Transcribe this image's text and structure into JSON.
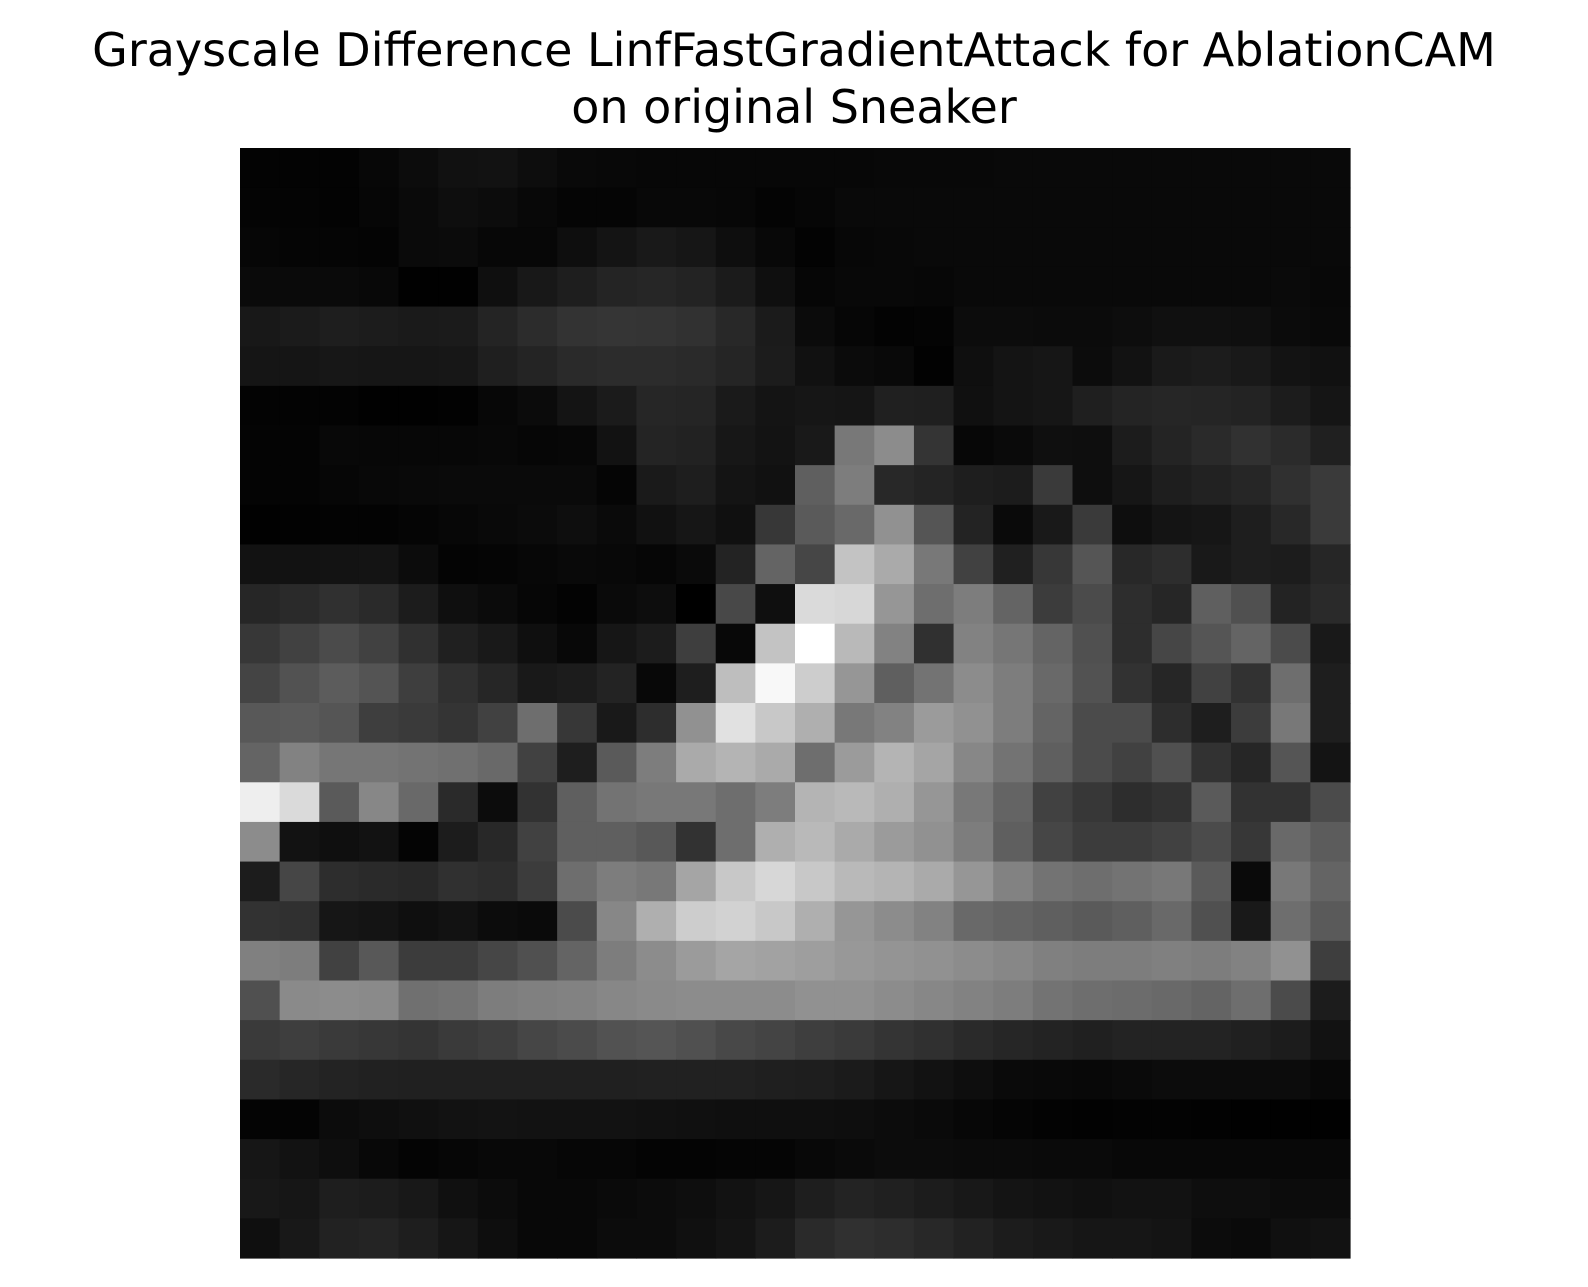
{
  "chart_data": {
    "type": "heatmap",
    "title": "Grayscale Difference LinfFastGradientAttack for AblationCAM\non original Sneaker",
    "title_lines": [
      "Grayscale Difference LinfFastGradientAttack for AblationCAM",
      "on original Sneaker"
    ],
    "colormap": "gray",
    "value_range": [
      0,
      255
    ],
    "axes_visible": false,
    "rows": 28,
    "cols": 28,
    "values": [
      [
        3,
        3,
        3,
        7,
        12,
        17,
        18,
        13,
        9,
        8,
        7,
        7,
        7,
        7,
        7,
        7,
        8,
        8,
        8,
        9,
        9,
        9,
        9,
        9,
        9,
        9,
        9,
        9
      ],
      [
        4,
        4,
        3,
        6,
        10,
        14,
        12,
        8,
        5,
        5,
        8,
        8,
        7,
        4,
        6,
        9,
        9,
        9,
        9,
        9,
        9,
        9,
        9,
        9,
        9,
        9,
        9,
        9
      ],
      [
        6,
        5,
        5,
        4,
        10,
        11,
        7,
        7,
        14,
        20,
        25,
        22,
        14,
        8,
        3,
        7,
        8,
        9,
        9,
        9,
        9,
        9,
        9,
        9,
        9,
        9,
        9,
        9
      ],
      [
        10,
        10,
        10,
        8,
        1,
        1,
        15,
        24,
        30,
        36,
        38,
        35,
        27,
        15,
        6,
        8,
        8,
        7,
        9,
        9,
        9,
        9,
        9,
        9,
        9,
        9,
        10,
        8
      ],
      [
        24,
        27,
        30,
        28,
        26,
        27,
        36,
        44,
        51,
        53,
        52,
        49,
        40,
        27,
        11,
        6,
        3,
        4,
        12,
        12,
        11,
        11,
        13,
        16,
        16,
        15,
        11,
        9
      ],
      [
        21,
        21,
        23,
        22,
        22,
        23,
        31,
        36,
        42,
        44,
        44,
        42,
        37,
        28,
        17,
        11,
        9,
        2,
        15,
        20,
        22,
        12,
        18,
        26,
        28,
        25,
        19,
        17
      ],
      [
        3,
        3,
        3,
        1,
        1,
        2,
        7,
        11,
        20,
        27,
        38,
        37,
        26,
        20,
        22,
        21,
        32,
        31,
        16,
        20,
        22,
        31,
        36,
        38,
        37,
        35,
        28,
        21
      ],
      [
        4,
        4,
        8,
        7,
        7,
        7,
        8,
        6,
        7,
        18,
        36,
        34,
        23,
        19,
        25,
        120,
        140,
        52,
        7,
        10,
        15,
        14,
        28,
        36,
        42,
        49,
        43,
        32
      ],
      [
        4,
        4,
        6,
        8,
        9,
        10,
        10,
        10,
        10,
        5,
        26,
        30,
        20,
        17,
        95,
        125,
        40,
        36,
        30,
        28,
        58,
        14,
        22,
        30,
        34,
        38,
        48,
        58
      ],
      [
        1,
        2,
        3,
        3,
        5,
        7,
        9,
        11,
        14,
        10,
        17,
        22,
        16,
        55,
        90,
        105,
        145,
        85,
        35,
        10,
        25,
        58,
        14,
        20,
        22,
        30,
        40,
        58
      ],
      [
        18,
        18,
        19,
        20,
        12,
        4,
        5,
        7,
        9,
        8,
        6,
        10,
        35,
        100,
        70,
        195,
        170,
        120,
        65,
        32,
        55,
        85,
        40,
        45,
        25,
        30,
        28,
        38
      ],
      [
        38,
        42,
        48,
        42,
        28,
        15,
        11,
        6,
        3,
        10,
        13,
        0,
        72,
        15,
        218,
        215,
        150,
        110,
        125,
        100,
        60,
        75,
        45,
        38,
        95,
        80,
        35,
        42
      ],
      [
        55,
        65,
        75,
        65,
        48,
        32,
        25,
        15,
        8,
        22,
        28,
        62,
        8,
        195,
        255,
        185,
        130,
        48,
        130,
        118,
        100,
        80,
        45,
        70,
        85,
        100,
        75,
        25
      ],
      [
        68,
        82,
        92,
        84,
        62,
        48,
        38,
        25,
        28,
        35,
        8,
        30,
        190,
        248,
        205,
        150,
        95,
        115,
        140,
        125,
        105,
        82,
        50,
        38,
        65,
        50,
        110,
        30
      ],
      [
        88,
        90,
        85,
        62,
        58,
        52,
        65,
        110,
        55,
        25,
        45,
        145,
        225,
        200,
        175,
        120,
        130,
        155,
        145,
        125,
        100,
        75,
        75,
        45,
        30,
        60,
        120,
        30
      ],
      [
        100,
        130,
        118,
        118,
        115,
        112,
        105,
        65,
        30,
        90,
        125,
        170,
        180,
        170,
        110,
        155,
        180,
        165,
        135,
        115,
        95,
        75,
        65,
        80,
        50,
        38,
        85,
        20
      ],
      [
        238,
        218,
        90,
        135,
        105,
        42,
        12,
        50,
        95,
        115,
        120,
        120,
        110,
        125,
        180,
        185,
        175,
        150,
        120,
        100,
        65,
        55,
        45,
        50,
        90,
        50,
        50,
        75
      ],
      [
        140,
        18,
        15,
        18,
        4,
        28,
        40,
        65,
        95,
        95,
        88,
        50,
        110,
        175,
        185,
        170,
        155,
        145,
        125,
        95,
        70,
        60,
        60,
        65,
        75,
        55,
        105,
        92
      ],
      [
        28,
        70,
        45,
        42,
        40,
        48,
        45,
        60,
        110,
        125,
        120,
        165,
        200,
        215,
        200,
        185,
        180,
        170,
        150,
        130,
        115,
        110,
        115,
        120,
        90,
        10,
        120,
        100
      ],
      [
        50,
        48,
        22,
        20,
        15,
        18,
        12,
        10,
        75,
        135,
        175,
        205,
        210,
        200,
        175,
        150,
        140,
        130,
        105,
        100,
        95,
        90,
        95,
        105,
        80,
        25,
        110,
        90
      ],
      [
        128,
        125,
        65,
        88,
        60,
        60,
        70,
        80,
        100,
        125,
        140,
        155,
        165,
        162,
        158,
        152,
        148,
        145,
        140,
        135,
        128,
        125,
        125,
        128,
        125,
        130,
        145,
        62
      ],
      [
        80,
        138,
        140,
        138,
        112,
        115,
        125,
        128,
        130,
        135,
        138,
        140,
        140,
        140,
        145,
        145,
        140,
        135,
        130,
        125,
        115,
        110,
        108,
        105,
        100,
        110,
        75,
        28
      ],
      [
        58,
        62,
        58,
        55,
        52,
        58,
        62,
        70,
        75,
        82,
        85,
        80,
        72,
        68,
        62,
        58,
        52,
        48,
        42,
        38,
        35,
        32,
        35,
        35,
        35,
        32,
        28,
        18
      ],
      [
        42,
        38,
        35,
        33,
        32,
        32,
        32,
        32,
        32,
        32,
        33,
        33,
        33,
        31,
        30,
        27,
        22,
        18,
        14,
        10,
        9,
        8,
        10,
        12,
        12,
        12,
        12,
        8
      ],
      [
        4,
        4,
        12,
        14,
        16,
        18,
        19,
        18,
        18,
        18,
        17,
        16,
        15,
        15,
        15,
        14,
        12,
        10,
        7,
        5,
        3,
        2,
        3,
        3,
        2,
        1,
        1,
        1
      ],
      [
        22,
        18,
        14,
        8,
        4,
        6,
        8,
        8,
        6,
        6,
        4,
        4,
        5,
        5,
        8,
        10,
        12,
        12,
        11,
        11,
        10,
        10,
        8,
        8,
        8,
        8,
        8,
        8
      ],
      [
        24,
        22,
        30,
        28,
        24,
        16,
        12,
        8,
        8,
        10,
        12,
        14,
        18,
        22,
        30,
        35,
        32,
        28,
        24,
        20,
        18,
        16,
        18,
        18,
        14,
        14,
        12,
        12
      ],
      [
        15,
        24,
        34,
        36,
        30,
        22,
        14,
        8,
        8,
        12,
        12,
        16,
        20,
        28,
        42,
        48,
        45,
        40,
        34,
        28,
        25,
        22,
        22,
        20,
        12,
        10,
        16,
        18
      ]
    ]
  }
}
